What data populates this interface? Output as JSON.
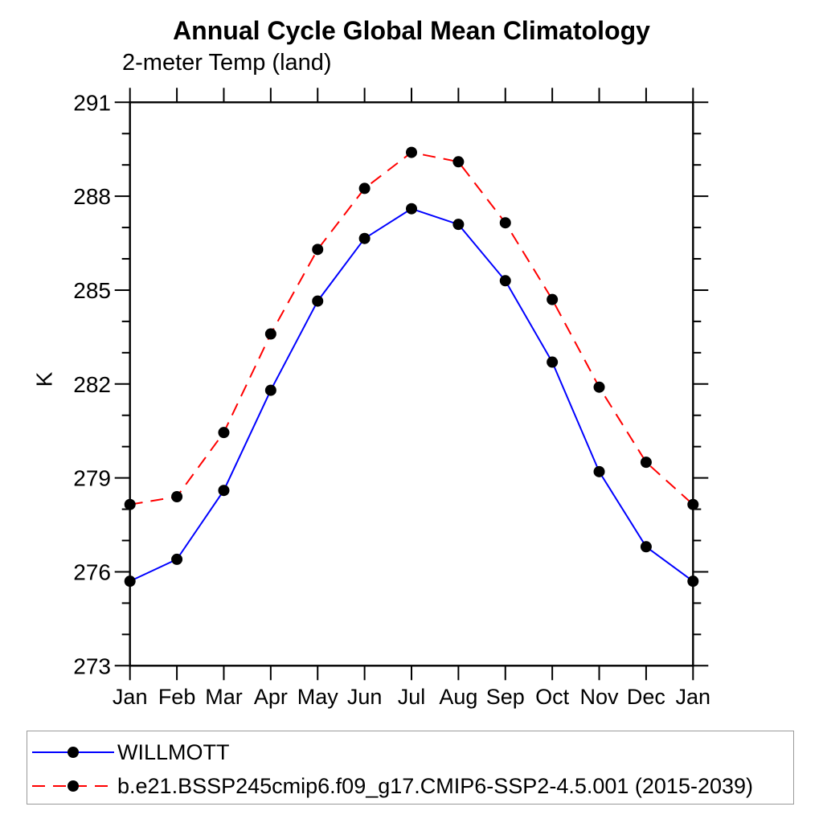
{
  "chart_data": {
    "type": "line",
    "title": "Annual Cycle Global Mean Climatology",
    "axis_title": "2-meter Temp (land)",
    "ylabel": "K",
    "xlabel": "",
    "categories": [
      "Jan",
      "Feb",
      "Mar",
      "Apr",
      "May",
      "Jun",
      "Jul",
      "Aug",
      "Sep",
      "Oct",
      "Nov",
      "Dec",
      "Jan"
    ],
    "ylim": [
      273,
      291
    ],
    "ytick_major": [
      273,
      276,
      279,
      282,
      285,
      288,
      291
    ],
    "ytick_minor_step": 1,
    "grid": false,
    "legend_position": "bottom",
    "series": [
      {
        "name": "WILLMOTT",
        "color": "#0000ff",
        "line_style": "solid",
        "marker": "filled-circle",
        "marker_color": "#000000",
        "values": [
          275.7,
          276.4,
          278.6,
          281.8,
          284.65,
          286.65,
          287.6,
          287.1,
          285.3,
          282.7,
          279.2,
          276.8,
          275.7
        ]
      },
      {
        "name": "b.e21.BSSP245cmip6.f09_g17.CMIP6-SSP2-4.5.001 (2015-2039)",
        "color": "#ff0000",
        "line_style": "dashed",
        "marker": "filled-circle",
        "marker_color": "#000000",
        "values": [
          278.15,
          278.4,
          280.45,
          283.6,
          286.3,
          288.25,
          289.4,
          289.1,
          287.15,
          284.7,
          281.9,
          279.5,
          278.15
        ]
      }
    ]
  },
  "colors": {
    "frame": "#000000",
    "tick": "#000000",
    "text": "#000000",
    "legend_border": "#9a9a9a",
    "background": "#ffffff"
  }
}
